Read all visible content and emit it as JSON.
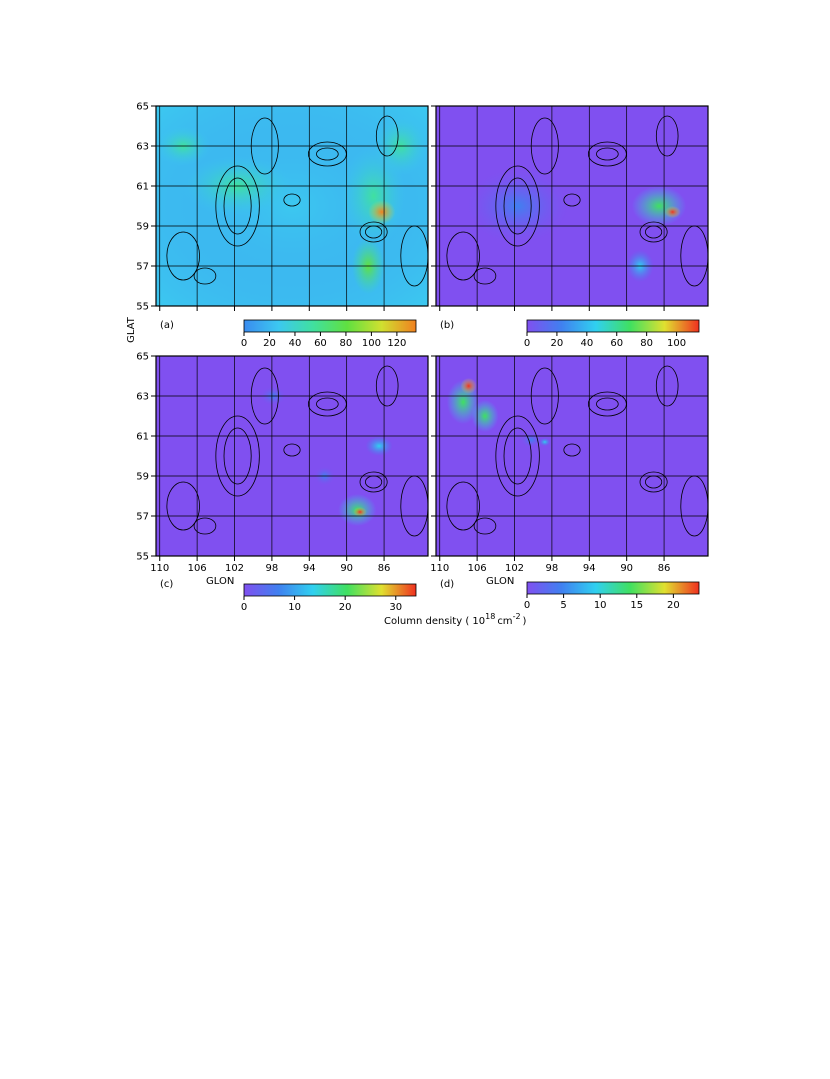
{
  "figure": {
    "y_label": "GLAT",
    "x_label": "GLON",
    "colorbar_label": [
      "Column density ( 10",
      "18",
      "cm",
      "-2",
      ")"
    ],
    "xlim": [
      110.4,
      81.3
    ],
    "ylim": [
      55,
      65
    ],
    "xticks": [
      110,
      106,
      102,
      98,
      94,
      90,
      86
    ],
    "yticks": [
      55,
      57,
      59,
      61,
      63,
      65
    ],
    "grid": true,
    "panels": [
      {
        "label": "(a)",
        "colorbar_lim": [
          0,
          135
        ],
        "colorbar_ticks": [
          0,
          20,
          40,
          60,
          80,
          100,
          120
        ],
        "colormap": [
          "#3a8cf0",
          "#3cc8f0",
          "#40e0a0",
          "#60e040",
          "#d0e030",
          "#f08020"
        ]
      },
      {
        "label": "(b)",
        "colorbar_lim": [
          0,
          115
        ],
        "colorbar_ticks": [
          0,
          20,
          40,
          60,
          80,
          100
        ],
        "colormap": [
          "#8050f0",
          "#4080f0",
          "#30d0f0",
          "#40e060",
          "#e0e030",
          "#f03020"
        ]
      },
      {
        "label": "(c)",
        "colorbar_lim": [
          0,
          34
        ],
        "colorbar_ticks": [
          0,
          10,
          20,
          30
        ],
        "colormap": [
          "#8050f0",
          "#4080f0",
          "#30d0f0",
          "#40e060",
          "#e0e030",
          "#f03020"
        ]
      },
      {
        "label": "(d)",
        "colorbar_lim": [
          0,
          23.5
        ],
        "colorbar_ticks": [
          0,
          5,
          10,
          15,
          20
        ],
        "colormap": [
          "#8050f0",
          "#4080f0",
          "#30d0f0",
          "#40e060",
          "#e0e030",
          "#f03020"
        ]
      }
    ]
  }
}
